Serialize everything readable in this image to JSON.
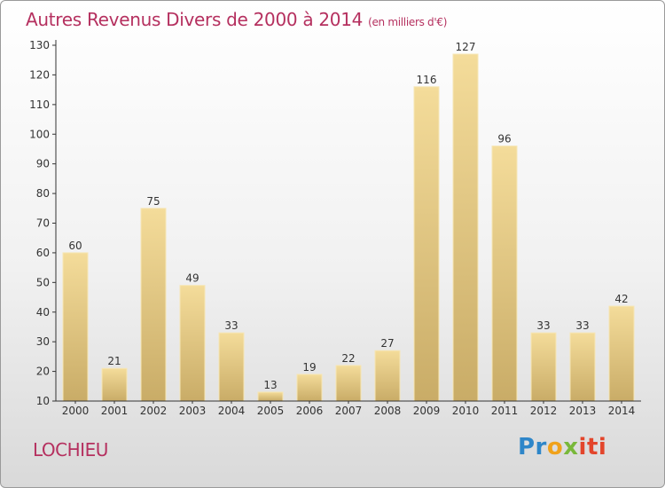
{
  "header": {
    "title": "Autres Revenus Divers de 2000 à 2014",
    "unit": "(en milliers d'€)"
  },
  "footer": {
    "place": "LOCHIEU",
    "logo_parts": [
      "Pr",
      "o",
      "x",
      "iti"
    ]
  },
  "colors": {
    "title": "#b5305f",
    "bar_light": "#f4dc9a",
    "bar_dark": "#c9ac67"
  },
  "chart_data": {
    "type": "bar",
    "title": "Autres Revenus Divers de 2000 à 2014",
    "subtitle": "(en milliers d'€)",
    "xlabel": "",
    "ylabel": "",
    "categories": [
      "2000",
      "2001",
      "2002",
      "2003",
      "2004",
      "2005",
      "2006",
      "2007",
      "2008",
      "2009",
      "2010",
      "2011",
      "2012",
      "2013",
      "2014"
    ],
    "values": [
      60,
      21,
      75,
      49,
      33,
      13,
      19,
      22,
      27,
      116,
      127,
      96,
      33,
      33,
      42
    ],
    "ylim": [
      10,
      130
    ],
    "yticks": [
      10,
      20,
      30,
      40,
      50,
      60,
      70,
      80,
      90,
      100,
      110,
      120,
      130
    ],
    "grid": false,
    "legend": "none"
  }
}
